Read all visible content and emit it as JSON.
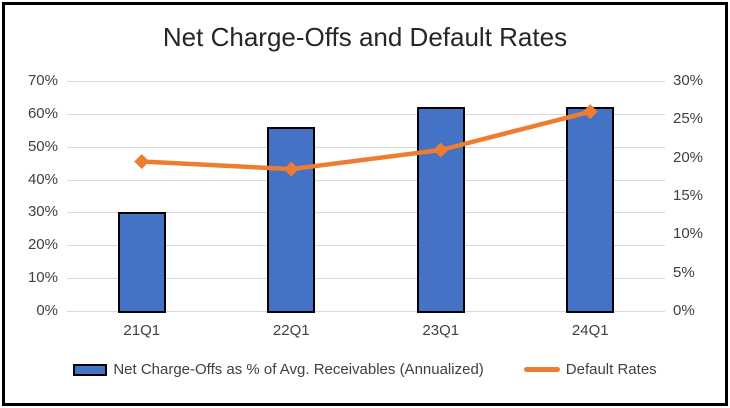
{
  "window": {
    "background": "#FFFFFF",
    "frame_border_color": "#000000"
  },
  "chart_data": {
    "type": "combo-bar-line",
    "title": "Net Charge-Offs and Default Rates",
    "categories": [
      "21Q1",
      "22Q1",
      "23Q1",
      "24Q1"
    ],
    "series": [
      {
        "name": "Net Charge-Offs as % of Avg. Receivables (Annualized)",
        "type": "bar",
        "axis": "left",
        "values": [
          30,
          56,
          62,
          62
        ],
        "unit": "%",
        "fill": "#4472C4",
        "border_color": "#000000"
      },
      {
        "name": "Default Rates",
        "type": "line",
        "axis": "right",
        "values": [
          19.5,
          18.5,
          21,
          26
        ],
        "unit": "%",
        "color": "#ED7D31",
        "marker": "diamond"
      }
    ],
    "axes": {
      "left": {
        "min": 0,
        "max": 70,
        "step": 10,
        "tick_labels": [
          "70%",
          "60%",
          "50%",
          "40%",
          "30%",
          "20%",
          "10%",
          "0%"
        ]
      },
      "right": {
        "min": 0,
        "max": 30,
        "step": 5,
        "tick_labels": [
          "30%",
          "25%",
          "20%",
          "15%",
          "10%",
          "5%",
          "0%"
        ]
      }
    },
    "gridlines": {
      "horizontal": true,
      "color": "#D9D9D9"
    },
    "legend_position": "bottom",
    "text_color": "#404040",
    "title_color": "#262626"
  }
}
